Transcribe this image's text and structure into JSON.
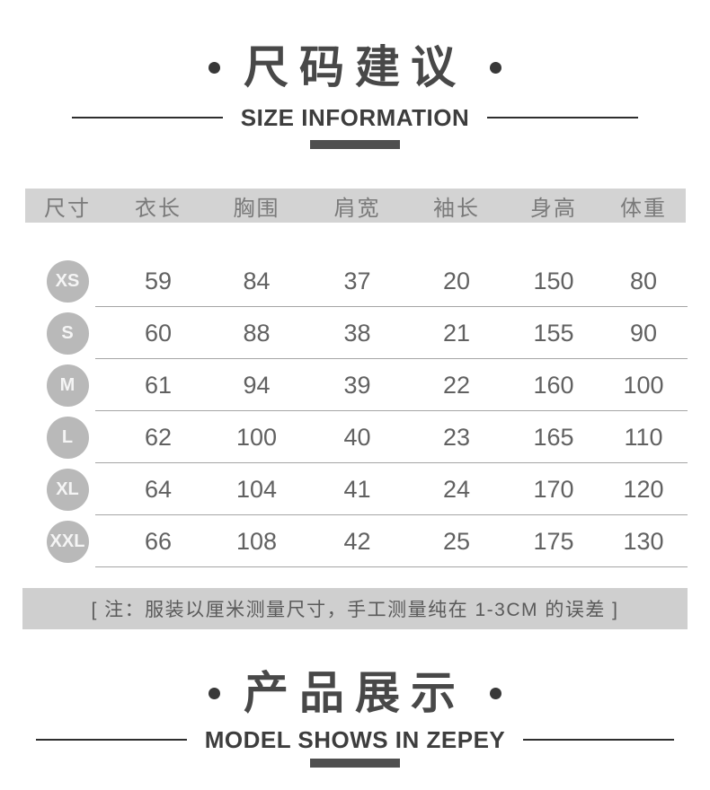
{
  "size_section": {
    "title": "尺码建议",
    "subtitle": "SIZE INFORMATION",
    "table": {
      "headers": [
        "尺寸",
        "衣长",
        "胸围",
        "肩宽",
        "袖长",
        "身高",
        "体重"
      ],
      "rows": [
        {
          "size": "XS",
          "values": [
            "59",
            "84",
            "37",
            "20",
            "150",
            "80"
          ]
        },
        {
          "size": "S",
          "values": [
            "60",
            "88",
            "38",
            "21",
            "155",
            "90"
          ]
        },
        {
          "size": "M",
          "values": [
            "61",
            "94",
            "39",
            "22",
            "160",
            "100"
          ]
        },
        {
          "size": "L",
          "values": [
            "62",
            "100",
            "40",
            "23",
            "165",
            "110"
          ]
        },
        {
          "size": "XL",
          "values": [
            "64",
            "104",
            "41",
            "24",
            "170",
            "120"
          ]
        },
        {
          "size": "XXL",
          "values": [
            "66",
            "108",
            "42",
            "25",
            "175",
            "130"
          ]
        }
      ]
    },
    "note": "[ 注：服装以厘米测量尺寸，手工测量纯在 1-3CM 的误差 ]"
  },
  "product_section": {
    "title": "产品展示",
    "subtitle": "MODEL SHOWS IN ZEPEY"
  },
  "colors": {
    "title_text": "#484848",
    "dot": "#383838",
    "subtitle_line": "#2e2e2e",
    "subtitle_text": "#3d3d3d",
    "accent_bar": "#4f4f4f",
    "table_header_bg": "#d3d3d3",
    "table_header_text": "#7a7a7a",
    "badge_bg": "#b9b9b9",
    "badge_text": "#f5f5f5",
    "value_text": "#616161",
    "divider": "#a5a5a5",
    "note_bg": "#cfcfcf",
    "note_text": "#5a5a5a"
  }
}
